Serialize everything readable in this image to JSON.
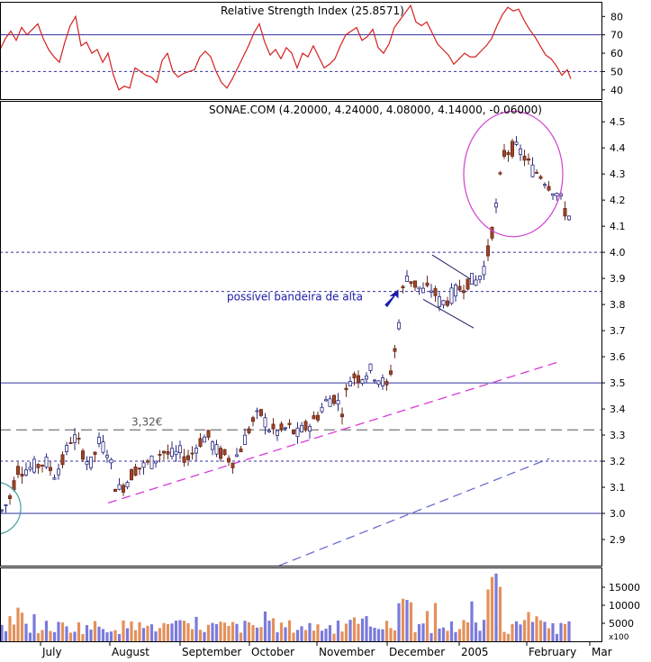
{
  "rsi_panel": {
    "title": "Relative Strength Index (25.8571)",
    "ylim": [
      35,
      88
    ],
    "ticks": [
      40,
      50,
      60,
      70,
      80
    ],
    "ref_lines": [
      70,
      50
    ],
    "series": [
      {
        "x": 0,
        "y": 62
      },
      {
        "x": 6,
        "y": 68
      },
      {
        "x": 12,
        "y": 72
      },
      {
        "x": 18,
        "y": 67
      },
      {
        "x": 24,
        "y": 74
      },
      {
        "x": 30,
        "y": 70
      },
      {
        "x": 36,
        "y": 73
      },
      {
        "x": 42,
        "y": 76
      },
      {
        "x": 48,
        "y": 68
      },
      {
        "x": 54,
        "y": 62
      },
      {
        "x": 60,
        "y": 58
      },
      {
        "x": 66,
        "y": 55
      },
      {
        "x": 72,
        "y": 66
      },
      {
        "x": 78,
        "y": 75
      },
      {
        "x": 84,
        "y": 80
      },
      {
        "x": 90,
        "y": 64
      },
      {
        "x": 96,
        "y": 66
      },
      {
        "x": 102,
        "y": 60
      },
      {
        "x": 108,
        "y": 62
      },
      {
        "x": 114,
        "y": 55
      },
      {
        "x": 120,
        "y": 60
      },
      {
        "x": 126,
        "y": 48
      },
      {
        "x": 132,
        "y": 40
      },
      {
        "x": 138,
        "y": 42
      },
      {
        "x": 144,
        "y": 41
      },
      {
        "x": 150,
        "y": 52
      },
      {
        "x": 156,
        "y": 50
      },
      {
        "x": 162,
        "y": 48
      },
      {
        "x": 168,
        "y": 47
      },
      {
        "x": 174,
        "y": 44
      },
      {
        "x": 180,
        "y": 56
      },
      {
        "x": 186,
        "y": 60
      },
      {
        "x": 192,
        "y": 50
      },
      {
        "x": 198,
        "y": 47
      },
      {
        "x": 204,
        "y": 49
      },
      {
        "x": 210,
        "y": 50
      },
      {
        "x": 216,
        "y": 51
      },
      {
        "x": 222,
        "y": 58
      },
      {
        "x": 228,
        "y": 61
      },
      {
        "x": 234,
        "y": 58
      },
      {
        "x": 240,
        "y": 50
      },
      {
        "x": 246,
        "y": 44
      },
      {
        "x": 252,
        "y": 41
      },
      {
        "x": 258,
        "y": 46
      },
      {
        "x": 264,
        "y": 52
      },
      {
        "x": 270,
        "y": 58
      },
      {
        "x": 276,
        "y": 64
      },
      {
        "x": 282,
        "y": 71
      },
      {
        "x": 288,
        "y": 76
      },
      {
        "x": 294,
        "y": 66
      },
      {
        "x": 300,
        "y": 59
      },
      {
        "x": 306,
        "y": 62
      },
      {
        "x": 312,
        "y": 57
      },
      {
        "x": 318,
        "y": 63
      },
      {
        "x": 324,
        "y": 60
      },
      {
        "x": 330,
        "y": 52
      },
      {
        "x": 336,
        "y": 60
      },
      {
        "x": 342,
        "y": 58
      },
      {
        "x": 348,
        "y": 64
      },
      {
        "x": 354,
        "y": 58
      },
      {
        "x": 360,
        "y": 52
      },
      {
        "x": 366,
        "y": 54
      },
      {
        "x": 372,
        "y": 57
      },
      {
        "x": 378,
        "y": 64
      },
      {
        "x": 384,
        "y": 70
      },
      {
        "x": 390,
        "y": 72
      },
      {
        "x": 396,
        "y": 74
      },
      {
        "x": 402,
        "y": 67
      },
      {
        "x": 408,
        "y": 69
      },
      {
        "x": 414,
        "y": 73
      },
      {
        "x": 420,
        "y": 63
      },
      {
        "x": 426,
        "y": 60
      },
      {
        "x": 432,
        "y": 65
      },
      {
        "x": 438,
        "y": 74
      },
      {
        "x": 444,
        "y": 78
      },
      {
        "x": 450,
        "y": 82
      },
      {
        "x": 456,
        "y": 86
      },
      {
        "x": 462,
        "y": 77
      },
      {
        "x": 468,
        "y": 75
      },
      {
        "x": 474,
        "y": 77
      },
      {
        "x": 480,
        "y": 71
      },
      {
        "x": 486,
        "y": 65
      },
      {
        "x": 492,
        "y": 62
      },
      {
        "x": 498,
        "y": 59
      },
      {
        "x": 504,
        "y": 54
      },
      {
        "x": 510,
        "y": 57
      },
      {
        "x": 516,
        "y": 60
      },
      {
        "x": 522,
        "y": 58
      },
      {
        "x": 528,
        "y": 58
      },
      {
        "x": 534,
        "y": 61
      },
      {
        "x": 540,
        "y": 64
      },
      {
        "x": 546,
        "y": 68
      },
      {
        "x": 552,
        "y": 75
      },
      {
        "x": 558,
        "y": 81
      },
      {
        "x": 564,
        "y": 85
      },
      {
        "x": 570,
        "y": 83
      },
      {
        "x": 576,
        "y": 84
      },
      {
        "x": 582,
        "y": 78
      },
      {
        "x": 588,
        "y": 73
      },
      {
        "x": 594,
        "y": 69
      },
      {
        "x": 600,
        "y": 64
      },
      {
        "x": 606,
        "y": 59
      },
      {
        "x": 612,
        "y": 57
      },
      {
        "x": 618,
        "y": 53
      },
      {
        "x": 624,
        "y": 48
      },
      {
        "x": 630,
        "y": 51
      },
      {
        "x": 634,
        "y": 46
      }
    ]
  },
  "price_panel": {
    "title": "SONAE.COM (4.20000, 4.24000, 4.08000, 4.14000, -0.06000)",
    "ylim": [
      2.8,
      4.58
    ],
    "ticks": [
      2.9,
      3.0,
      3.1,
      3.2,
      3.3,
      3.4,
      3.5,
      3.6,
      3.7,
      3.8,
      3.9,
      4.0,
      4.1,
      4.2,
      4.3,
      4.4,
      4.5
    ],
    "solid_levels": [
      3.0,
      3.5
    ],
    "dashed_levels": [
      3.32
    ],
    "dotted_levels": [
      3.2,
      3.85,
      4.0
    ],
    "annotations": {
      "level_label": "3,32€",
      "flag_label": "possível bandeira de alta"
    },
    "trendlines": [
      {
        "from": [
          120,
          3.04
        ],
        "to": [
          620,
          3.58
        ],
        "style": "dashed",
        "color": "#d63ad6"
      },
      {
        "from": [
          310,
          2.8
        ],
        "to": [
          610,
          3.21
        ],
        "style": "dashed",
        "color": "#6c6cd0"
      }
    ],
    "channel": [
      {
        "from": [
          480,
          3.99
        ],
        "to": [
          526,
          3.89
        ]
      },
      {
        "from": [
          470,
          3.82
        ],
        "to": [
          526,
          3.71
        ]
      }
    ],
    "candles_anchor": [
      [
        0,
        3.0
      ],
      [
        10,
        3.05
      ],
      [
        20,
        3.17
      ],
      [
        30,
        3.17
      ],
      [
        40,
        3.18
      ],
      [
        50,
        3.2
      ],
      [
        60,
        3.15
      ],
      [
        70,
        3.2
      ],
      [
        80,
        3.3
      ],
      [
        90,
        3.25
      ],
      [
        100,
        3.18
      ],
      [
        110,
        3.27
      ],
      [
        120,
        3.24
      ],
      [
        130,
        3.08
      ],
      [
        140,
        3.12
      ],
      [
        150,
        3.17
      ],
      [
        160,
        3.18
      ],
      [
        170,
        3.2
      ],
      [
        180,
        3.24
      ],
      [
        190,
        3.22
      ],
      [
        200,
        3.23
      ],
      [
        210,
        3.21
      ],
      [
        220,
        3.27
      ],
      [
        230,
        3.3
      ],
      [
        240,
        3.24
      ],
      [
        250,
        3.22
      ],
      [
        260,
        3.2
      ],
      [
        270,
        3.27
      ],
      [
        280,
        3.35
      ],
      [
        290,
        3.38
      ],
      [
        300,
        3.32
      ],
      [
        310,
        3.31
      ],
      [
        320,
        3.33
      ],
      [
        330,
        3.3
      ],
      [
        340,
        3.33
      ],
      [
        350,
        3.36
      ],
      [
        360,
        3.42
      ],
      [
        370,
        3.45
      ],
      [
        380,
        3.4
      ],
      [
        390,
        3.53
      ],
      [
        400,
        3.52
      ],
      [
        410,
        3.55
      ],
      [
        420,
        3.52
      ],
      [
        430,
        3.48
      ],
      [
        440,
        3.65
      ],
      [
        450,
        3.92
      ],
      [
        460,
        3.88
      ],
      [
        470,
        3.85
      ],
      [
        480,
        3.86
      ],
      [
        490,
        3.8
      ],
      [
        500,
        3.83
      ],
      [
        510,
        3.86
      ],
      [
        520,
        3.89
      ],
      [
        530,
        3.89
      ],
      [
        540,
        3.96
      ],
      [
        550,
        4.15
      ],
      [
        560,
        4.38
      ],
      [
        570,
        4.4
      ],
      [
        580,
        4.38
      ],
      [
        590,
        4.32
      ],
      [
        600,
        4.3
      ],
      [
        610,
        4.26
      ],
      [
        620,
        4.22
      ],
      [
        630,
        4.14
      ]
    ],
    "circles": [
      {
        "cx": 570,
        "cy": 4.3,
        "rx": 55,
        "ry": 0.24
      },
      {
        "cx": -5,
        "cy": 3.02,
        "rx": 28,
        "ry": 0.1
      }
    ]
  },
  "volume_panel": {
    "ylim": [
      0,
      20500
    ],
    "ticks": [
      5000,
      10000,
      15000
    ],
    "multiplier_label": "x100",
    "up_color": "#7a7adc",
    "down_color": "#e4905a"
  },
  "x_axis": {
    "months": [
      "July",
      "August",
      "September",
      "October",
      "November",
      "December",
      "2005",
      "February",
      "Mar"
    ],
    "month_x": [
      45,
      122,
      200,
      277,
      352,
      430,
      510,
      585,
      655
    ]
  },
  "colors": {
    "background": "#ffffff",
    "rsi_line": "#d42020",
    "reference": "#3030a0",
    "up_candle_fill": "#ffffff",
    "up_candle_edge": "#2a2a80",
    "down_candle_fill": "#a0442a",
    "annotation_text": "#1a1aa8",
    "ellipse": "#d040d0",
    "ellipse_left": "#40a0a0"
  },
  "icons": {
    "arrow": "up-right-arrow-icon"
  }
}
